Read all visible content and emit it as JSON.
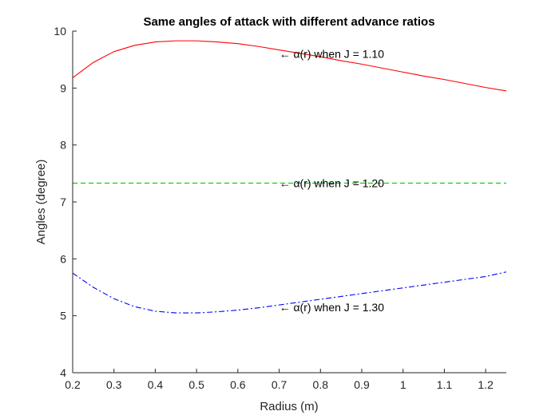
{
  "chart_data": {
    "type": "line",
    "title": "Same angles of attack with different advance ratios",
    "xlabel": "Radius (m)",
    "ylabel": "Angles (degree)",
    "xlim": [
      0.2,
      1.25
    ],
    "ylim": [
      4,
      10
    ],
    "xticks": [
      "0.2",
      "0.3",
      "0.4",
      "0.5",
      "0.6",
      "0.7",
      "0.8",
      "0.9",
      "1",
      "1.1",
      "1.2"
    ],
    "yticks": [
      "4",
      "5",
      "6",
      "7",
      "8",
      "9",
      "10"
    ],
    "grid": false,
    "legend": "none",
    "series": [
      {
        "color": "#ff0000",
        "style": "solid",
        "x": [
          0.2,
          0.25,
          0.3,
          0.35,
          0.4,
          0.45,
          0.5,
          0.55,
          0.6,
          0.65,
          0.7,
          0.75,
          0.8,
          0.85,
          0.9,
          0.95,
          1.0,
          1.05,
          1.1,
          1.15,
          1.2,
          1.25
        ],
        "y": [
          9.18,
          9.45,
          9.64,
          9.75,
          9.81,
          9.83,
          9.83,
          9.81,
          9.78,
          9.73,
          9.67,
          9.61,
          9.55,
          9.48,
          9.42,
          9.35,
          9.28,
          9.21,
          9.15,
          9.08,
          9.01,
          8.95
        ]
      },
      {
        "color": "#00cc00",
        "style": "dashed",
        "x": [
          0.2,
          1.25
        ],
        "y": [
          7.33,
          7.33
        ]
      },
      {
        "color": "#0000ff",
        "style": "dashdot",
        "x": [
          0.2,
          0.25,
          0.3,
          0.35,
          0.4,
          0.45,
          0.5,
          0.55,
          0.6,
          0.65,
          0.7,
          0.75,
          0.8,
          0.85,
          0.9,
          0.95,
          1.0,
          1.05,
          1.1,
          1.15,
          1.2,
          1.25
        ],
        "y": [
          5.75,
          5.5,
          5.3,
          5.16,
          5.08,
          5.05,
          5.05,
          5.07,
          5.1,
          5.14,
          5.19,
          5.24,
          5.29,
          5.34,
          5.39,
          5.44,
          5.49,
          5.54,
          5.59,
          5.64,
          5.69,
          5.77
        ]
      }
    ],
    "annotations": [
      {
        "text": "← α(r) when J = 1.10",
        "x": 0.7,
        "y": 9.6
      },
      {
        "text": "← α(r) when J = 1.20",
        "x": 0.7,
        "y": 7.33
      },
      {
        "text": "← α(r) when J = 1.30",
        "x": 0.7,
        "y": 5.15
      }
    ]
  }
}
